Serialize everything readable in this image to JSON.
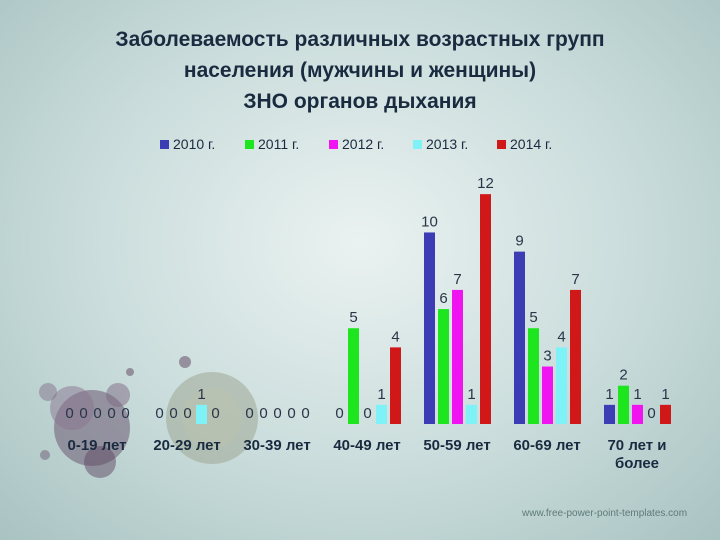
{
  "title_lines": [
    "Заболеваемость различных возрастных групп",
    "населения (мужчины и женщины)",
    "ЗНО органов дыхания"
  ],
  "watermark": "www.free-power-point-templates.com",
  "chart_data": {
    "type": "bar",
    "categories": [
      "0-19 лет",
      "20-29 лет",
      "30-39 лет",
      "40-49 лет",
      "50-59 лет",
      "60-69 лет",
      "70 лет и\nболее"
    ],
    "series": [
      {
        "name": "2010 г.",
        "color": "#3c3cb4",
        "values": [
          0,
          0,
          0,
          0,
          10,
          9,
          1
        ]
      },
      {
        "name": "2011 г.",
        "color": "#1ee61e",
        "values": [
          0,
          0,
          0,
          5,
          6,
          5,
          2
        ]
      },
      {
        "name": "2012 г.",
        "color": "#f014f0",
        "values": [
          0,
          0,
          0,
          0,
          7,
          3,
          1
        ]
      },
      {
        "name": "2013 г.",
        "color": "#7ef2f7",
        "values": [
          0,
          1,
          0,
          1,
          1,
          4,
          0
        ]
      },
      {
        "name": "2014 г.",
        "color": "#d01818",
        "values": [
          0,
          0,
          0,
          4,
          12,
          7,
          1
        ]
      }
    ],
    "ylim": [
      0,
      13
    ],
    "legend_position": "top",
    "grid": false
  }
}
